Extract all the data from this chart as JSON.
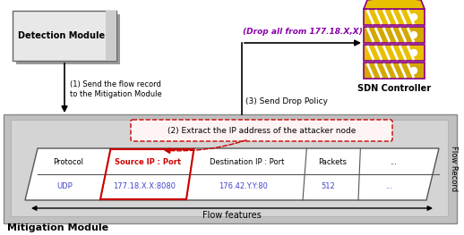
{
  "bg_color": "#ffffff",
  "sdn_label": "SDN Controller",
  "flow_record_label": "Flow Record",
  "mitigation_label": "Mitigation Module",
  "arrow1_label": "(1) Send the flow record\nto the Mitigation Module",
  "arrow3_label": "(3) Send Drop Policy",
  "drop_label": "(Drop all from 177.18.X,X)",
  "extract_label": "(2) Extract the IP address of the attacker node",
  "table_headers": [
    "Protocol",
    "Source IP : Port",
    "Destination IP : Port",
    "Packets",
    "..."
  ],
  "table_row": [
    "UDP",
    "177.18.X.X:8080",
    "176.42.Y.Y:80",
    "512",
    "..."
  ],
  "flow_features_label": "Flow features",
  "blue_color": "#4444cc",
  "purple_color": "#8800aa",
  "red_color": "#cc0000",
  "gold_color": "#e8c000",
  "gold_dark": "#aa8800",
  "stripe_color": "#880088"
}
